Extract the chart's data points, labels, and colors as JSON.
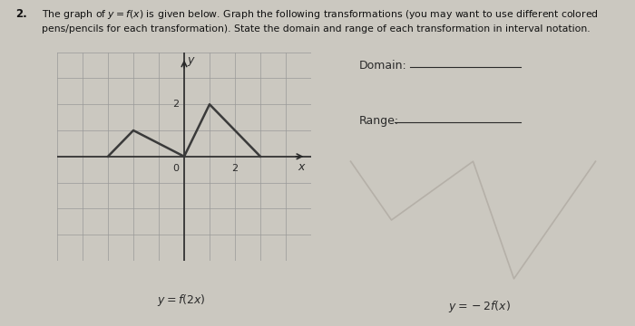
{
  "title_number": "2.",
  "background_color": "#cbc8c0",
  "graph_bg": "#cbc8c0",
  "grid_color": "#999999",
  "axis_color": "#2a2a2a",
  "curve_color": "#3a3a3a",
  "fx_points": [
    [
      -3,
      0
    ],
    [
      -2,
      1
    ],
    [
      0,
      0
    ],
    [
      1,
      2
    ],
    [
      3,
      0
    ]
  ],
  "xlim": [
    -5,
    5
  ],
  "ylim": [
    -4,
    4
  ],
  "x_axis_label": "x",
  "y_axis_label": "y",
  "label_below_graph": "$y = f(2x)$",
  "label_below_watermark": "$y = -2f(x)$",
  "domain_text": "Domain:",
  "range_text": "Range:",
  "watermark_color": "#b5b0a8",
  "watermark_points": [
    [
      -3,
      0
    ],
    [
      -2,
      -2
    ],
    [
      0,
      0
    ],
    [
      1,
      -4
    ],
    [
      3,
      0
    ]
  ]
}
